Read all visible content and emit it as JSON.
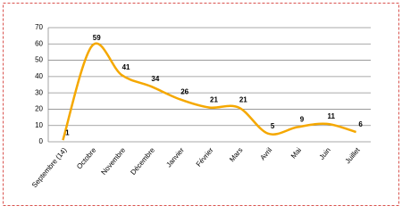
{
  "chart_data": {
    "type": "line",
    "categories": [
      "Septembre (14)",
      "Octobre",
      "Novembre",
      "Décembre",
      "Janvier",
      "Février",
      "Mars",
      "Avril",
      "Mai",
      "Juin",
      "Juillet"
    ],
    "values": [
      1,
      59,
      41,
      34,
      26,
      21,
      21,
      5,
      9,
      11,
      6
    ],
    "color": "#f5a800",
    "ylim": [
      0,
      70
    ],
    "yticks": [
      0,
      10,
      20,
      30,
      40,
      50,
      60,
      70
    ],
    "grid": true,
    "smooth": true
  }
}
